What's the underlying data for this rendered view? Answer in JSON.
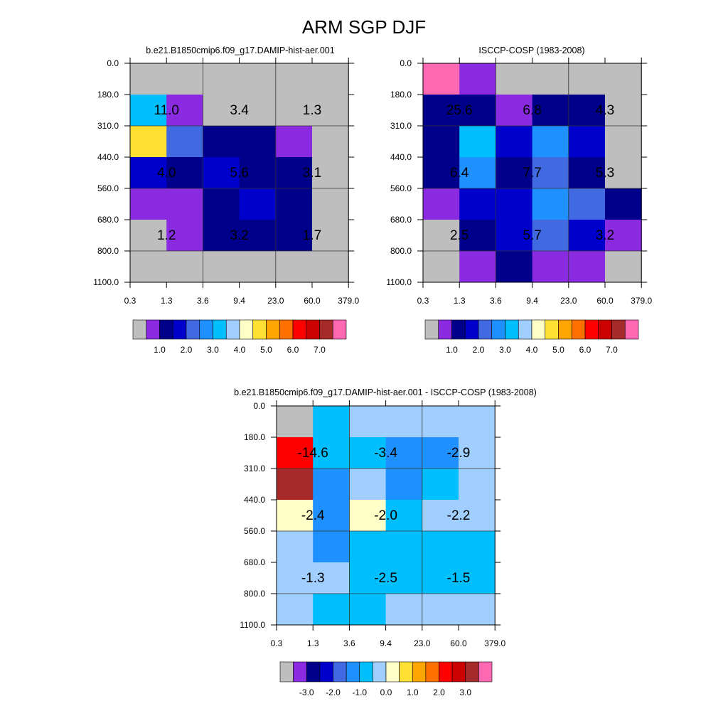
{
  "title": "ARM SGP DJF",
  "palette": {
    "gray": "#BEBEBE",
    "purple": "#8A2BE2",
    "navy": "#00008B",
    "blue": "#0000CD",
    "royalblue": "#4169E1",
    "dodger": "#1E90FF",
    "skyblue": "#00BFFF",
    "lightblue": "#A0CFFF",
    "cream": "#FFFFC8",
    "gold": "#FFE033",
    "orange1": "#FFA500",
    "orange2": "#FF7000",
    "red": "#FF0000",
    "darkred": "#CC0000",
    "brown": "#A52A2A",
    "pink": "#FF69B4"
  },
  "colorbar": {
    "colors": [
      "gray",
      "purple",
      "navy",
      "blue",
      "royalblue",
      "dodger",
      "skyblue",
      "lightblue",
      "cream",
      "gold",
      "orange1",
      "orange2",
      "red",
      "darkred",
      "brown",
      "pink"
    ]
  },
  "chart_data": [
    {
      "type": "heatmap",
      "subtitle": "b.e21.B1850cmip6.f09_g17.DAMIP-hist-aer.001",
      "x_ticks": [
        "0.3",
        "1.3",
        "3.6",
        "9.4",
        "23.0",
        "60.0",
        "379.0"
      ],
      "y_ticks": [
        "0.0",
        "180.0",
        "310.0",
        "440.0",
        "560.0",
        "680.0",
        "800.0",
        "1100.0"
      ],
      "cell_colors": [
        [
          "gray",
          "gray",
          "gray",
          "gray",
          "gray",
          "gray"
        ],
        [
          "skyblue",
          "purple",
          "gray",
          "gray",
          "gray",
          "gray"
        ],
        [
          "gold",
          "royalblue",
          "navy",
          "navy",
          "purple",
          "gray"
        ],
        [
          "blue",
          "navy",
          "blue",
          "navy",
          "navy",
          "gray"
        ],
        [
          "purple",
          "purple",
          "navy",
          "blue",
          "navy",
          "gray"
        ],
        [
          "gray",
          "purple",
          "navy",
          "navy",
          "navy",
          "gray"
        ],
        [
          "gray",
          "gray",
          "gray",
          "gray",
          "gray",
          "gray"
        ]
      ],
      "cell_labels": [
        [
          "11.0",
          "3.4",
          "1.3"
        ],
        [
          "4.0",
          "5.6",
          "3.1"
        ],
        [
          "1.2",
          "3.2",
          "1.7"
        ]
      ],
      "colorbar_labels": [
        "1.0",
        "2.0",
        "3.0",
        "4.0",
        "5.0",
        "6.0",
        "7.0"
      ]
    },
    {
      "type": "heatmap",
      "subtitle": "ISCCP-COSP (1983-2008)",
      "x_ticks": [
        "0.3",
        "1.3",
        "3.6",
        "9.4",
        "23.0",
        "60.0",
        "379.0"
      ],
      "y_ticks": [
        "0.0",
        "180.0",
        "310.0",
        "440.0",
        "560.0",
        "680.0",
        "800.0",
        "1100.0"
      ],
      "cell_colors": [
        [
          "pink",
          "purple",
          "gray",
          "gray",
          "gray",
          "gray"
        ],
        [
          "navy",
          "navy",
          "purple",
          "navy",
          "navy",
          "gray"
        ],
        [
          "navy",
          "skyblue",
          "blue",
          "dodger",
          "blue",
          "gray"
        ],
        [
          "navy",
          "dodger",
          "navy",
          "royalblue",
          "navy",
          "gray"
        ],
        [
          "purple",
          "blue",
          "blue",
          "dodger",
          "royalblue",
          "navy"
        ],
        [
          "gray",
          "navy",
          "blue",
          "royalblue",
          "blue",
          "purple"
        ],
        [
          "gray",
          "purple",
          "navy",
          "purple",
          "purple",
          "gray"
        ]
      ],
      "cell_labels": [
        [
          "25.6",
          "6.8",
          "4.3"
        ],
        [
          "6.4",
          "7.7",
          "5.3"
        ],
        [
          "2.5",
          "5.7",
          "3.2"
        ]
      ],
      "colorbar_labels": [
        "1.0",
        "2.0",
        "3.0",
        "4.0",
        "5.0",
        "6.0",
        "7.0"
      ]
    },
    {
      "type": "heatmap",
      "subtitle": "b.e21.B1850cmip6.f09_g17.DAMIP-hist-aer.001 - ISCCP-COSP (1983-2008)",
      "x_ticks": [
        "0.3",
        "1.3",
        "3.6",
        "9.4",
        "23.0",
        "60.0",
        "379.0"
      ],
      "y_ticks": [
        "0.0",
        "180.0",
        "310.0",
        "440.0",
        "560.0",
        "680.0",
        "800.0",
        "1100.0"
      ],
      "cell_colors": [
        [
          "gray",
          "skyblue",
          "lightblue",
          "lightblue",
          "lightblue",
          "lightblue"
        ],
        [
          "red",
          "skyblue",
          "skyblue",
          "dodger",
          "dodger",
          "lightblue"
        ],
        [
          "brown",
          "dodger",
          "lightblue",
          "dodger",
          "skyblue",
          "lightblue"
        ],
        [
          "cream",
          "dodger",
          "cream",
          "skyblue",
          "lightblue",
          "lightblue"
        ],
        [
          "lightblue",
          "dodger",
          "skyblue",
          "skyblue",
          "skyblue",
          "skyblue"
        ],
        [
          "lightblue",
          "lightblue",
          "skyblue",
          "skyblue",
          "skyblue",
          "skyblue"
        ],
        [
          "lightblue",
          "skyblue",
          "skyblue",
          "lightblue",
          "lightblue",
          "lightblue"
        ]
      ],
      "cell_labels": [
        [
          "-14.6",
          "-3.4",
          "-2.9"
        ],
        [
          "-2.4",
          "-2.0",
          "-2.2"
        ],
        [
          "-1.3",
          "-2.5",
          "-1.5"
        ]
      ],
      "colorbar_labels": [
        "-3.0",
        "-2.0",
        "-1.0",
        "0.0",
        "1.0",
        "2.0",
        "3.0"
      ]
    }
  ]
}
